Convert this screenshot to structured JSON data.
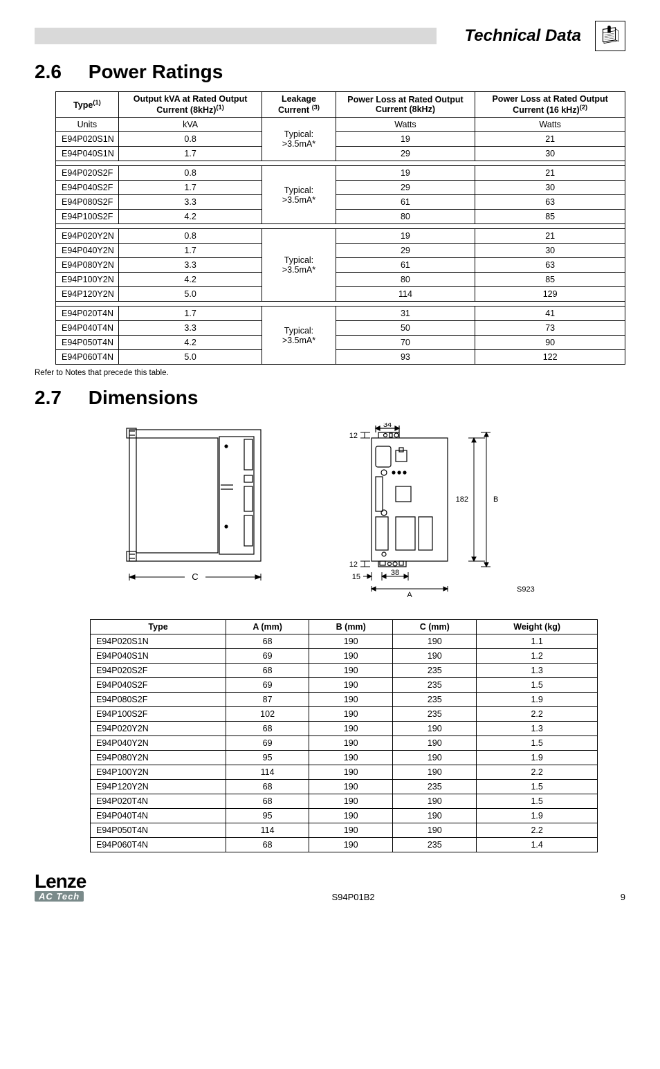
{
  "header": {
    "title": "Technical Data"
  },
  "section26": {
    "num": "2.6",
    "title": "Power Ratings",
    "columns": {
      "c1a": "Type",
      "c1b": "(1)",
      "c2a": "Output kVA at Rated Output Current (8kHz)",
      "c2b": "(1)",
      "c3a": "Leakage Current ",
      "c3b": "(3)",
      "c4": "Power Loss at Rated Output Current (8kHz)",
      "c5a": "Power Loss at Rated Output Current (16 kHz)",
      "c5b": "(2)"
    },
    "units_row": {
      "c1": "Units",
      "c2": "kVA",
      "c4": "Watts",
      "c5": "Watts"
    },
    "group1": {
      "leakage": "Typical: >3.5mA*",
      "rows": [
        {
          "type": "E94P020S1N",
          "kva": "0.8",
          "p8": "19",
          "p16": "21"
        },
        {
          "type": "E94P040S1N",
          "kva": "1.7",
          "p8": "29",
          "p16": "30"
        }
      ]
    },
    "group2": {
      "leakage": "Typical: >3.5mA*",
      "rows": [
        {
          "type": "E94P020S2F",
          "kva": "0.8",
          "p8": "19",
          "p16": "21"
        },
        {
          "type": "E94P040S2F",
          "kva": "1.7",
          "p8": "29",
          "p16": "30"
        },
        {
          "type": "E94P080S2F",
          "kva": "3.3",
          "p8": "61",
          "p16": "63"
        },
        {
          "type": "E94P100S2F",
          "kva": "4.2",
          "p8": "80",
          "p16": "85"
        }
      ]
    },
    "group3": {
      "leakage": "Typical: >3.5mA*",
      "rows": [
        {
          "type": "E94P020Y2N",
          "kva": "0.8",
          "p8": "19",
          "p16": "21"
        },
        {
          "type": "E94P040Y2N",
          "kva": "1.7",
          "p8": "29",
          "p16": "30"
        },
        {
          "type": "E94P080Y2N",
          "kva": "3.3",
          "p8": "61",
          "p16": "63"
        },
        {
          "type": "E94P100Y2N",
          "kva": "4.2",
          "p8": "80",
          "p16": "85"
        },
        {
          "type": "E94P120Y2N",
          "kva": "5.0",
          "p8": "114",
          "p16": "129"
        }
      ]
    },
    "group4": {
      "leakage": "Typical: >3.5mA*",
      "rows": [
        {
          "type": "E94P020T4N",
          "kva": "1.7",
          "p8": "31",
          "p16": "41"
        },
        {
          "type": "E94P040T4N",
          "kva": "3.3",
          "p8": "50",
          "p16": "73"
        },
        {
          "type": "E94P050T4N",
          "kva": "4.2",
          "p8": "70",
          "p16": "90"
        },
        {
          "type": "E94P060T4N",
          "kva": "5.0",
          "p8": "93",
          "p16": "122"
        }
      ]
    },
    "note": "Refer to Notes that precede this table."
  },
  "section27": {
    "num": "2.7",
    "title": "Dimensions",
    "diagram": {
      "front": {
        "label_C": "C"
      },
      "side": {
        "d34": "34",
        "d12t": "12",
        "d12b": "12",
        "d15": "15",
        "d38": "38",
        "d182": "182",
        "dB": "B",
        "dA": "A",
        "tag": "S923"
      }
    },
    "columns": {
      "c1": "Type",
      "c2": "A (mm)",
      "c3": "B (mm)",
      "c4": "C (mm)",
      "c5": "Weight (kg)"
    },
    "rows": [
      {
        "t": "E94P020S1N",
        "a": "68",
        "b": "190",
        "c": "190",
        "w": "1.1"
      },
      {
        "t": "E94P040S1N",
        "a": "69",
        "b": "190",
        "c": "190",
        "w": "1.2"
      },
      {
        "t": "E94P020S2F",
        "a": "68",
        "b": "190",
        "c": "235",
        "w": "1.3"
      },
      {
        "t": "E94P040S2F",
        "a": "69",
        "b": "190",
        "c": "235",
        "w": "1.5"
      },
      {
        "t": "E94P080S2F",
        "a": "87",
        "b": "190",
        "c": "235",
        "w": "1.9"
      },
      {
        "t": "E94P100S2F",
        "a": "102",
        "b": "190",
        "c": "235",
        "w": "2.2"
      },
      {
        "t": "E94P020Y2N",
        "a": "68",
        "b": "190",
        "c": "190",
        "w": "1.3"
      },
      {
        "t": "E94P040Y2N",
        "a": "69",
        "b": "190",
        "c": "190",
        "w": "1.5"
      },
      {
        "t": "E94P080Y2N",
        "a": "95",
        "b": "190",
        "c": "190",
        "w": "1.9"
      },
      {
        "t": "E94P100Y2N",
        "a": "114",
        "b": "190",
        "c": "190",
        "w": "2.2"
      },
      {
        "t": "E94P120Y2N",
        "a": "68",
        "b": "190",
        "c": "235",
        "w": "1.5"
      },
      {
        "t": "E94P020T4N",
        "a": "68",
        "b": "190",
        "c": "190",
        "w": "1.5"
      },
      {
        "t": "E94P040T4N",
        "a": "95",
        "b": "190",
        "c": "190",
        "w": "1.9"
      },
      {
        "t": "E94P050T4N",
        "a": "114",
        "b": "190",
        "c": "190",
        "w": "2.2"
      },
      {
        "t": "E94P060T4N",
        "a": "68",
        "b": "190",
        "c": "235",
        "w": "1.4"
      }
    ]
  },
  "footer": {
    "logo1": "Lenze",
    "logo2": "AC Tech",
    "doc": "S94P01B2",
    "page": "9"
  }
}
